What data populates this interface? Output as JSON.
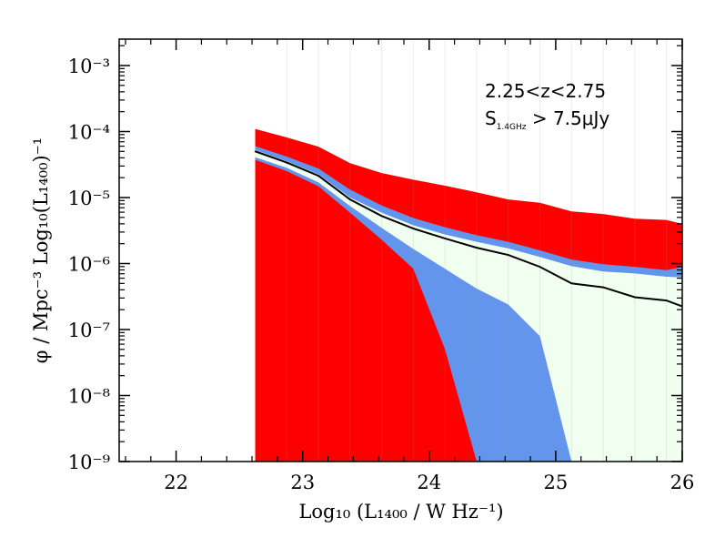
{
  "chart_data": {
    "type": "area",
    "x_axis": {
      "label": "Log₁₀ (L₁₄₀₀ / W Hz⁻¹)",
      "range": [
        21.55,
        26.0
      ],
      "ticks": [
        22,
        23,
        24,
        25,
        26
      ],
      "tick_labels": [
        "22",
        "23",
        "24",
        "25",
        "26"
      ]
    },
    "y_axis": {
      "label": "φ / Mpc⁻³ Log₁₀(L₁₄₀₀)⁻¹",
      "scale": "log",
      "range_log10": [
        -9,
        -2.6
      ],
      "ticks_log10": [
        -9,
        -8,
        -7,
        -6,
        -5,
        -4,
        -3
      ],
      "tick_labels": [
        "10⁻⁹",
        "10⁻⁸",
        "10⁻⁷",
        "10⁻⁶",
        "10⁻⁵",
        "10⁻⁴",
        "10⁻³"
      ]
    },
    "annotations": {
      "line1": "2.25<z<2.75",
      "line2_main": "S",
      "line2_sub": "1.4GHz",
      "line2_rest": " > 7.5μJy"
    },
    "x": [
      22.625,
      22.875,
      23.125,
      23.375,
      23.625,
      23.875,
      24.125,
      24.375,
      24.625,
      24.875,
      25.125,
      25.375,
      25.625,
      25.875,
      26.0
    ],
    "series": [
      {
        "role": "outer_band_upper",
        "color": "#ff0000",
        "log10_phi": [
          -3.96,
          -4.09,
          -4.23,
          -4.48,
          -4.63,
          -4.73,
          -4.82,
          -4.92,
          -5.03,
          -5.08,
          -5.21,
          -5.25,
          -5.32,
          -5.34,
          -5.4
        ]
      },
      {
        "role": "outer_band_lower",
        "color": "#ff0000",
        "log10_phi": [
          -4.43,
          -4.6,
          -4.83,
          -5.23,
          -5.64,
          -6.08,
          -7.3,
          -9.0
        ]
      },
      {
        "role": "middle_band_upper",
        "color": "#6495ed",
        "log10_phi": [
          -4.22,
          -4.38,
          -4.56,
          -4.88,
          -5.12,
          -5.31,
          -5.45,
          -5.57,
          -5.67,
          -5.8,
          -5.94,
          -6.01,
          -6.05,
          -6.1,
          -6.05
        ]
      },
      {
        "role": "middle_band_lower",
        "color": "#6495ed",
        "log10_phi": [
          -4.39,
          -4.55,
          -4.77,
          -5.13,
          -5.46,
          -5.78,
          -6.08,
          -6.38,
          -6.62,
          -7.1,
          -9.0
        ]
      },
      {
        "role": "inner_band_upper",
        "color": "#f0fff0",
        "log10_phi": [
          -4.28,
          -4.45,
          -4.65,
          -5.0,
          -5.23,
          -5.42,
          -5.56,
          -5.67,
          -5.77,
          -5.9,
          -6.04,
          -6.12,
          -6.15,
          -6.2,
          -6.21
        ]
      },
      {
        "role": "inner_band_lower",
        "color": "#f0fff0",
        "log10_phi": [
          -4.36,
          -4.52,
          -4.7,
          -5.1,
          -5.38,
          -5.62,
          -5.88,
          -6.18,
          -6.42,
          -6.88,
          -9.0,
          -9.0,
          -9.0,
          -9.0,
          -9.0
        ]
      },
      {
        "role": "median_line",
        "color": "#000000",
        "log10_phi": [
          -4.3,
          -4.47,
          -4.67,
          -5.03,
          -5.28,
          -5.47,
          -5.62,
          -5.76,
          -5.87,
          -6.05,
          -6.3,
          -6.36,
          -6.51,
          -6.56,
          -6.65
        ]
      }
    ],
    "grid": false
  }
}
